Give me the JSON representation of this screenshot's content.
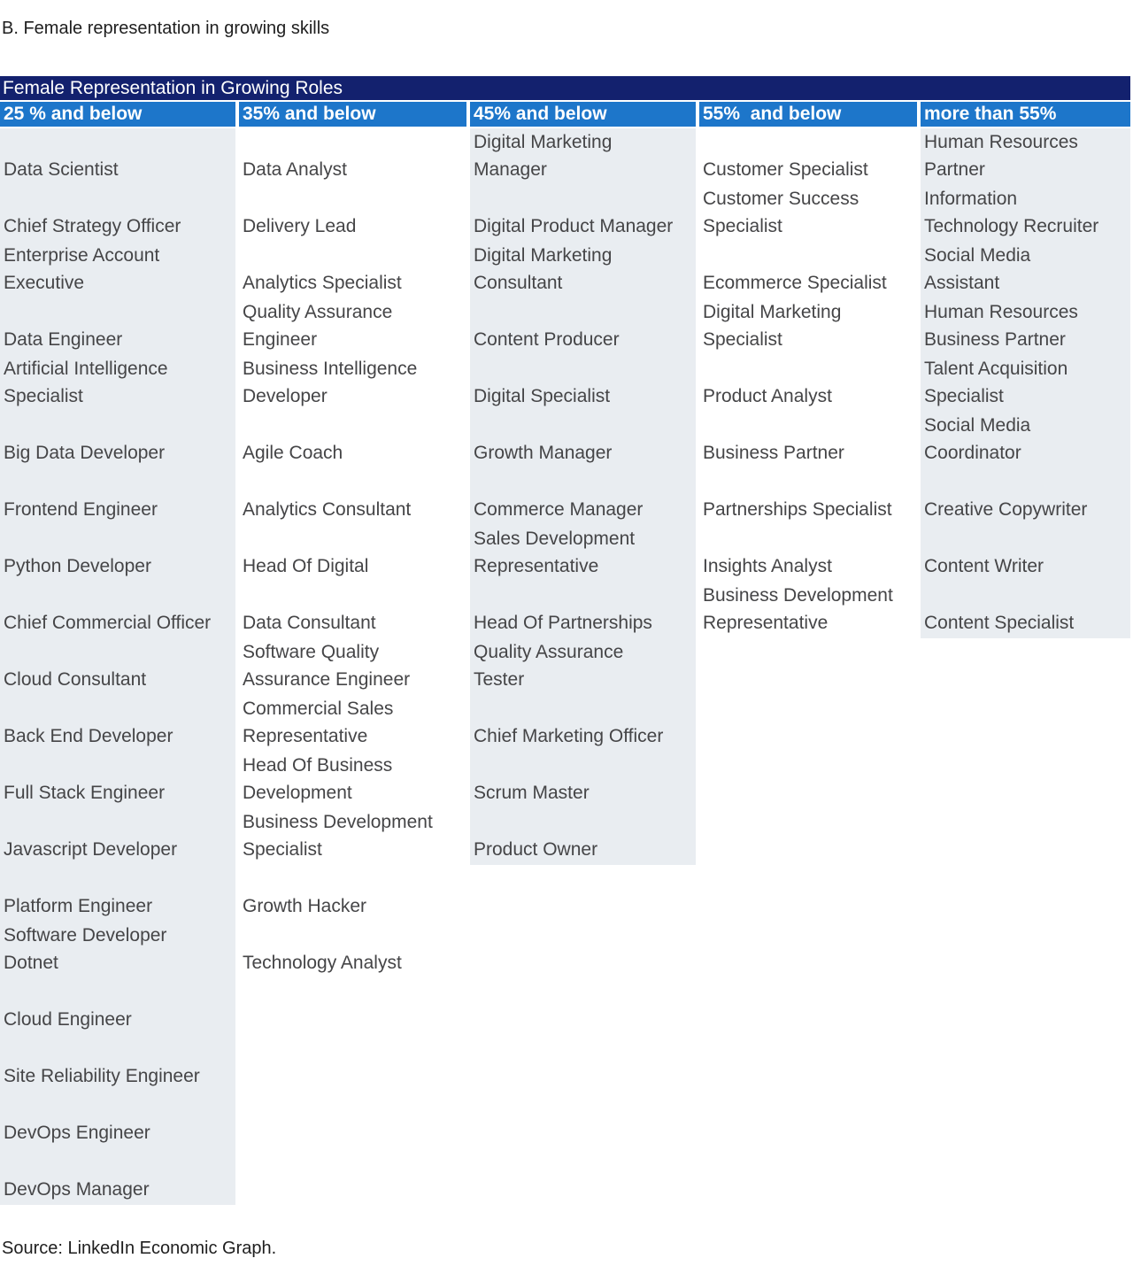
{
  "page_title": "B. Female representation in growing skills",
  "source": "Source: LinkedIn Economic Graph.",
  "colors": {
    "table_title_bar_bg": "#13216E",
    "column_header_bg": "#1D76CA",
    "shaded_column_bg": "#E9EDF1",
    "header_text": "#FFFFFF",
    "body_text": "#454547"
  },
  "table": {
    "title": "Female Representation in Growing Roles",
    "columns": [
      {
        "header": "25 % and below",
        "shaded": true,
        "roles": [
          "Data Scientist",
          "Chief Strategy Officer",
          "Enterprise Account\nExecutive",
          "Data Engineer",
          "Artificial Intelligence\nSpecialist",
          "Big Data Developer",
          "Frontend Engineer",
          "Python Developer",
          "Chief Commercial Officer",
          "Cloud Consultant",
          "Back End Developer",
          "Full Stack Engineer",
          "Javascript Developer",
          "Platform Engineer",
          "Software Developer\nDotnet",
          "Cloud Engineer",
          "Site Reliability Engineer",
          "DevOps Engineer",
          "DevOps Manager"
        ]
      },
      {
        "header": "35% and below",
        "shaded": false,
        "roles": [
          "Data Analyst",
          "Delivery Lead",
          "Analytics Specialist",
          "Quality Assurance\nEngineer",
          "Business Intelligence\nDeveloper",
          "Agile Coach",
          "Analytics Consultant",
          "Head Of Digital",
          "Data Consultant",
          "Software Quality\nAssurance Engineer",
          "Commercial Sales\nRepresentative",
          "Head Of Business\nDevelopment",
          "Business Development\nSpecialist",
          "Growth Hacker",
          "Technology Analyst"
        ]
      },
      {
        "header": "45% and below",
        "shaded": true,
        "roles": [
          "Digital Marketing\nManager",
          "Digital Product Manager",
          "Digital Marketing\nConsultant",
          "Content Producer",
          "Digital Specialist",
          "Growth Manager",
          "Commerce Manager",
          "Sales Development\nRepresentative",
          "Head Of Partnerships",
          "Quality Assurance\nTester",
          "Chief Marketing Officer",
          "Scrum Master",
          "Product Owner"
        ]
      },
      {
        "header": "55%  and below",
        "shaded": false,
        "roles": [
          "Customer Specialist",
          "Customer Success\nSpecialist",
          "Ecommerce Specialist",
          "Digital Marketing\nSpecialist",
          "Product Analyst",
          "Business Partner",
          "Partnerships Specialist",
          "Insights Analyst",
          "Business Development\nRepresentative"
        ]
      },
      {
        "header": "more than 55%",
        "shaded": true,
        "roles": [
          "Human Resources\nPartner",
          "Information\nTechnology Recruiter",
          "Social Media\nAssistant",
          "Human Resources\nBusiness Partner",
          "Talent Acquisition\nSpecialist",
          "Social Media\nCoordinator",
          "Creative Copywriter",
          "Content Writer",
          "Content Specialist"
        ]
      }
    ]
  }
}
